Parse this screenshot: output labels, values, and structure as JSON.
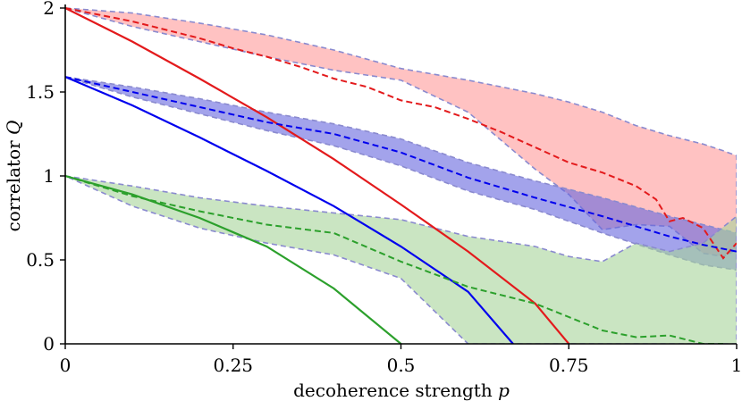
{
  "chart_data": {
    "type": "line",
    "xlabel": "decoherence strength",
    "xlabel_var": "p",
    "ylabel": "correlator",
    "ylabel_var": "Q",
    "xlim": [
      0,
      1
    ],
    "ylim": [
      0,
      2
    ],
    "x_ticks": [
      {
        "value": 0,
        "label": "0"
      },
      {
        "value": 0.25,
        "label": "0.25"
      },
      {
        "value": 0.5,
        "label": "0.5"
      },
      {
        "value": 0.75,
        "label": "0.75"
      },
      {
        "value": 1,
        "label": "1"
      }
    ],
    "y_ticks": [
      {
        "value": 0,
        "label": "0"
      },
      {
        "value": 0.5,
        "label": "0.5"
      },
      {
        "value": 1,
        "label": "1"
      },
      {
        "value": 1.5,
        "label": "1.5"
      },
      {
        "value": 2,
        "label": "2"
      }
    ],
    "grid": false,
    "series": [
      {
        "color": "#e31a1c",
        "fill_color": "#ff9999",
        "theory": {
          "q0": 2,
          "x": [
            0,
            0.1,
            0.2,
            0.3,
            0.4,
            0.5,
            0.6,
            0.7,
            0.75
          ],
          "y": [
            2.0,
            1.8,
            1.58,
            1.35,
            1.1,
            0.83,
            0.55,
            0.24,
            0.0
          ]
        },
        "mean": {
          "x": [
            0,
            0.05,
            0.1,
            0.15,
            0.2,
            0.25,
            0.3,
            0.35,
            0.4,
            0.45,
            0.5,
            0.55,
            0.6,
            0.65,
            0.7,
            0.75,
            0.8,
            0.85,
            0.88,
            0.9,
            0.92,
            0.95,
            0.98,
            1.0
          ],
          "y": [
            2.0,
            1.96,
            1.92,
            1.87,
            1.82,
            1.76,
            1.71,
            1.65,
            1.58,
            1.53,
            1.45,
            1.41,
            1.34,
            1.26,
            1.17,
            1.08,
            1.02,
            0.94,
            0.86,
            0.73,
            0.75,
            0.69,
            0.51,
            0.6
          ]
        },
        "band": {
          "x": [
            0,
            0.1,
            0.2,
            0.3,
            0.4,
            0.5,
            0.6,
            0.7,
            0.75,
            0.8,
            0.85,
            0.9,
            0.95,
            0.98,
            1.0
          ],
          "upper": [
            2.0,
            1.97,
            1.91,
            1.84,
            1.75,
            1.64,
            1.57,
            1.49,
            1.44,
            1.38,
            1.3,
            1.24,
            1.19,
            1.15,
            1.12
          ],
          "lower": [
            2.0,
            1.89,
            1.8,
            1.71,
            1.63,
            1.57,
            1.38,
            1.04,
            0.89,
            0.68,
            0.71,
            0.7,
            0.54,
            0.52,
            0.56
          ]
        }
      },
      {
        "color": "#0000ee",
        "fill_color": "#6666dd",
        "theory": {
          "q0": 1.59,
          "x": [
            0,
            0.1,
            0.2,
            0.3,
            0.4,
            0.5,
            0.6,
            0.667
          ],
          "y": [
            1.59,
            1.42,
            1.23,
            1.03,
            0.82,
            0.58,
            0.31,
            0.0
          ]
        },
        "mean": {
          "x": [
            0,
            0.1,
            0.2,
            0.3,
            0.4,
            0.5,
            0.6,
            0.7,
            0.8,
            0.9,
            0.95,
            1.0
          ],
          "y": [
            1.59,
            1.5,
            1.41,
            1.32,
            1.25,
            1.14,
            0.99,
            0.87,
            0.76,
            0.64,
            0.59,
            0.55
          ]
        },
        "band": {
          "x": [
            0,
            0.1,
            0.2,
            0.3,
            0.4,
            0.5,
            0.6,
            0.7,
            0.8,
            0.9,
            0.95,
            1.0
          ],
          "upper": [
            1.59,
            1.53,
            1.46,
            1.38,
            1.31,
            1.22,
            1.08,
            0.97,
            0.87,
            0.76,
            0.71,
            0.66
          ],
          "lower": [
            1.59,
            1.47,
            1.37,
            1.27,
            1.18,
            1.06,
            0.91,
            0.8,
            0.66,
            0.53,
            0.47,
            0.44
          ]
        }
      },
      {
        "color": "#2ca02c",
        "fill_color": "#a6d49a",
        "theory": {
          "q0": 1,
          "x": [
            0,
            0.1,
            0.2,
            0.3,
            0.4,
            0.5
          ],
          "y": [
            1.0,
            0.89,
            0.75,
            0.58,
            0.33,
            0.0
          ]
        },
        "mean": {
          "x": [
            0,
            0.1,
            0.2,
            0.3,
            0.4,
            0.5,
            0.6,
            0.7,
            0.8,
            0.85,
            0.9,
            0.95,
            0.98
          ],
          "y": [
            1.0,
            0.88,
            0.79,
            0.71,
            0.66,
            0.49,
            0.34,
            0.24,
            0.08,
            0.04,
            0.05,
            0.0,
            0.0
          ]
        },
        "band": {
          "x": [
            0,
            0.1,
            0.2,
            0.3,
            0.4,
            0.5,
            0.6,
            0.65,
            0.7,
            0.75,
            0.8,
            0.85,
            0.9,
            0.95,
            1.0
          ],
          "upper": [
            1.0,
            0.94,
            0.87,
            0.82,
            0.78,
            0.74,
            0.64,
            0.61,
            0.58,
            0.52,
            0.49,
            0.6,
            0.55,
            0.6,
            0.76
          ],
          "lower": [
            1.0,
            0.82,
            0.69,
            0.6,
            0.53,
            0.39,
            0.0,
            0.0,
            0.0,
            0.0,
            0.0,
            0.0,
            0.0,
            0.0,
            0.0
          ]
        }
      }
    ]
  }
}
